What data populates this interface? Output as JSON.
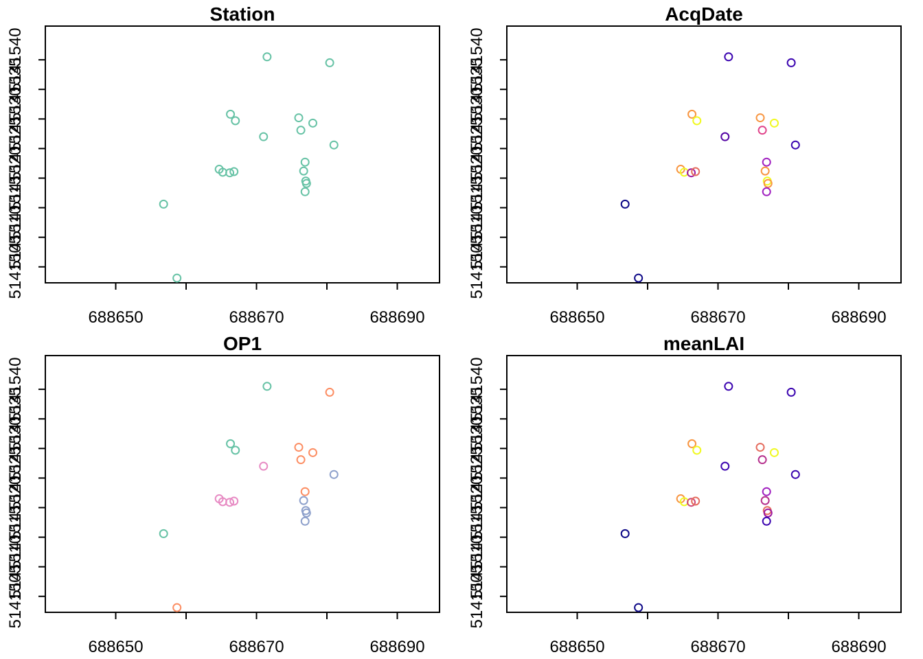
{
  "chart_data": [
    {
      "type": "scatter",
      "title": "Station",
      "xlabel": "",
      "ylabel": "",
      "xlim": [
        688640,
        688696
      ],
      "ylim": [
        5141502.3,
        5141545.7
      ],
      "xticks": [
        688650,
        688660,
        688670,
        688680,
        688690
      ],
      "xtick_labels": [
        "688650",
        "",
        "688670",
        "",
        "688690"
      ],
      "yticks": [
        5141505,
        5141510,
        5141515,
        5141520,
        5141525,
        5141530,
        5141535,
        5141540
      ],
      "ytick_labels": [
        "5141505",
        "5141510",
        "5141515",
        "5141520",
        "5141525",
        "5141530",
        "5141535",
        "5141540"
      ],
      "points": [
        {
          "x": 688656.8,
          "y": 5141515.6,
          "color": "#66c2a5"
        },
        {
          "x": 688658.7,
          "y": 5141503.1,
          "color": "#66c2a5"
        },
        {
          "x": 688664.7,
          "y": 5141521.5,
          "color": "#66c2a5"
        },
        {
          "x": 688665.2,
          "y": 5141521.0,
          "color": "#66c2a5"
        },
        {
          "x": 688666.2,
          "y": 5141520.9,
          "color": "#66c2a5"
        },
        {
          "x": 688666.8,
          "y": 5141521.1,
          "color": "#66c2a5"
        },
        {
          "x": 688666.3,
          "y": 5141530.8,
          "color": "#66c2a5"
        },
        {
          "x": 688667.0,
          "y": 5141529.7,
          "color": "#66c2a5"
        },
        {
          "x": 688671.0,
          "y": 5141527.0,
          "color": "#66c2a5"
        },
        {
          "x": 688671.5,
          "y": 5141540.5,
          "color": "#66c2a5"
        },
        {
          "x": 688676.0,
          "y": 5141530.2,
          "color": "#66c2a5"
        },
        {
          "x": 688676.3,
          "y": 5141528.1,
          "color": "#66c2a5"
        },
        {
          "x": 688678.0,
          "y": 5141529.3,
          "color": "#66c2a5"
        },
        {
          "x": 688676.7,
          "y": 5141521.2,
          "color": "#66c2a5"
        },
        {
          "x": 688676.9,
          "y": 5141522.7,
          "color": "#66c2a5"
        },
        {
          "x": 688677.0,
          "y": 5141519.5,
          "color": "#66c2a5"
        },
        {
          "x": 688677.1,
          "y": 5141519.1,
          "color": "#66c2a5"
        },
        {
          "x": 688676.9,
          "y": 5141517.7,
          "color": "#66c2a5"
        },
        {
          "x": 688680.4,
          "y": 5141539.5,
          "color": "#66c2a5"
        },
        {
          "x": 688681.0,
          "y": 5141525.6,
          "color": "#66c2a5"
        }
      ]
    },
    {
      "type": "scatter",
      "title": "AcqDate",
      "xlabel": "",
      "ylabel": "",
      "xlim": [
        688640,
        688696
      ],
      "ylim": [
        5141502.3,
        5141545.7
      ],
      "xticks": [
        688650,
        688660,
        688670,
        688680,
        688690
      ],
      "xtick_labels": [
        "688650",
        "",
        "688670",
        "",
        "688690"
      ],
      "yticks": [
        5141505,
        5141510,
        5141515,
        5141520,
        5141525,
        5141530,
        5141535,
        5141540
      ],
      "ytick_labels": [
        "5141505",
        "5141510",
        "5141515",
        "5141520",
        "5141525",
        "5141530",
        "5141535",
        "5141540"
      ],
      "points": [
        {
          "x": 688656.8,
          "y": 5141515.6,
          "color": "#0d0887"
        },
        {
          "x": 688658.7,
          "y": 5141503.1,
          "color": "#0d0887"
        },
        {
          "x": 688664.7,
          "y": 5141521.5,
          "color": "#f89540"
        },
        {
          "x": 688665.2,
          "y": 5141521.0,
          "color": "#f0f921"
        },
        {
          "x": 688666.2,
          "y": 5141520.9,
          "color": "#9c179e"
        },
        {
          "x": 688666.8,
          "y": 5141521.1,
          "color": "#e56b5d"
        },
        {
          "x": 688666.3,
          "y": 5141530.8,
          "color": "#f89540"
        },
        {
          "x": 688667.0,
          "y": 5141529.7,
          "color": "#f0f921"
        },
        {
          "x": 688671.0,
          "y": 5141527.0,
          "color": "#5302a3"
        },
        {
          "x": 688671.5,
          "y": 5141540.5,
          "color": "#3b04b0"
        },
        {
          "x": 688676.0,
          "y": 5141530.2,
          "color": "#f89540"
        },
        {
          "x": 688676.3,
          "y": 5141528.1,
          "color": "#e0438a"
        },
        {
          "x": 688678.0,
          "y": 5141529.3,
          "color": "#f0f921"
        },
        {
          "x": 688676.7,
          "y": 5141521.2,
          "color": "#f89540"
        },
        {
          "x": 688676.9,
          "y": 5141522.7,
          "color": "#a020c0"
        },
        {
          "x": 688677.0,
          "y": 5141519.5,
          "color": "#f0f921"
        },
        {
          "x": 688677.1,
          "y": 5141519.1,
          "color": "#f89540"
        },
        {
          "x": 688676.9,
          "y": 5141517.7,
          "color": "#a020c0"
        },
        {
          "x": 688680.4,
          "y": 5141539.5,
          "color": "#3b04b0"
        },
        {
          "x": 688681.0,
          "y": 5141525.6,
          "color": "#3b04b0"
        }
      ]
    },
    {
      "type": "scatter",
      "title": "OP1",
      "xlabel": "",
      "ylabel": "",
      "xlim": [
        688640,
        688696
      ],
      "ylim": [
        5141502.3,
        5141545.7
      ],
      "xticks": [
        688650,
        688660,
        688670,
        688680,
        688690
      ],
      "xtick_labels": [
        "688650",
        "",
        "688670",
        "",
        "688690"
      ],
      "yticks": [
        5141505,
        5141510,
        5141515,
        5141520,
        5141525,
        5141530,
        5141535,
        5141540
      ],
      "ytick_labels": [
        "5141505",
        "5141510",
        "5141515",
        "5141520",
        "5141525",
        "5141530",
        "5141535",
        "5141540"
      ],
      "points": [
        {
          "x": 688656.8,
          "y": 5141515.6,
          "color": "#66c2a5"
        },
        {
          "x": 688658.7,
          "y": 5141503.1,
          "color": "#fc8d62"
        },
        {
          "x": 688664.7,
          "y": 5141521.5,
          "color": "#e78ac3"
        },
        {
          "x": 688665.2,
          "y": 5141521.0,
          "color": "#e78ac3"
        },
        {
          "x": 688666.2,
          "y": 5141520.9,
          "color": "#e78ac3"
        },
        {
          "x": 688666.8,
          "y": 5141521.1,
          "color": "#e78ac3"
        },
        {
          "x": 688666.3,
          "y": 5141530.8,
          "color": "#66c2a5"
        },
        {
          "x": 688667.0,
          "y": 5141529.7,
          "color": "#66c2a5"
        },
        {
          "x": 688671.0,
          "y": 5141527.0,
          "color": "#e78ac3"
        },
        {
          "x": 688671.5,
          "y": 5141540.5,
          "color": "#66c2a5"
        },
        {
          "x": 688676.0,
          "y": 5141530.2,
          "color": "#fc8d62"
        },
        {
          "x": 688676.3,
          "y": 5141528.1,
          "color": "#fc8d62"
        },
        {
          "x": 688678.0,
          "y": 5141529.3,
          "color": "#fc8d62"
        },
        {
          "x": 688676.7,
          "y": 5141521.2,
          "color": "#8da0cb"
        },
        {
          "x": 688676.9,
          "y": 5141522.7,
          "color": "#fc8d62"
        },
        {
          "x": 688677.0,
          "y": 5141519.5,
          "color": "#8da0cb"
        },
        {
          "x": 688677.1,
          "y": 5141519.1,
          "color": "#8da0cb"
        },
        {
          "x": 688676.9,
          "y": 5141517.7,
          "color": "#8da0cb"
        },
        {
          "x": 688680.4,
          "y": 5141539.5,
          "color": "#fc8d62"
        },
        {
          "x": 688681.0,
          "y": 5141525.6,
          "color": "#8da0cb"
        }
      ]
    },
    {
      "type": "scatter",
      "title": "meanLAI",
      "xlabel": "",
      "ylabel": "",
      "xlim": [
        688640,
        688696
      ],
      "ylim": [
        5141502.3,
        5141545.7
      ],
      "xticks": [
        688650,
        688660,
        688670,
        688680,
        688690
      ],
      "xtick_labels": [
        "688650",
        "",
        "688670",
        "",
        "688690"
      ],
      "yticks": [
        5141505,
        5141510,
        5141515,
        5141520,
        5141525,
        5141530,
        5141535,
        5141540
      ],
      "ytick_labels": [
        "5141505",
        "5141510",
        "5141515",
        "5141520",
        "5141525",
        "5141530",
        "5141535",
        "5141540"
      ],
      "points": [
        {
          "x": 688656.8,
          "y": 5141515.6,
          "color": "#0d0887"
        },
        {
          "x": 688658.7,
          "y": 5141503.1,
          "color": "#0d0887"
        },
        {
          "x": 688664.7,
          "y": 5141521.5,
          "color": "#f89540"
        },
        {
          "x": 688665.2,
          "y": 5141521.0,
          "color": "#f0f921"
        },
        {
          "x": 688666.2,
          "y": 5141520.9,
          "color": "#cc4778"
        },
        {
          "x": 688666.8,
          "y": 5141521.1,
          "color": "#e56b5d"
        },
        {
          "x": 688666.3,
          "y": 5141530.8,
          "color": "#f89540"
        },
        {
          "x": 688667.0,
          "y": 5141529.7,
          "color": "#f0f921"
        },
        {
          "x": 688671.0,
          "y": 5141527.0,
          "color": "#3b04b0"
        },
        {
          "x": 688671.5,
          "y": 5141540.5,
          "color": "#3b04b0"
        },
        {
          "x": 688676.0,
          "y": 5141530.2,
          "color": "#e56b5d"
        },
        {
          "x": 688676.3,
          "y": 5141528.1,
          "color": "#b52f8c"
        },
        {
          "x": 688678.0,
          "y": 5141529.3,
          "color": "#f0f921"
        },
        {
          "x": 688676.7,
          "y": 5141521.2,
          "color": "#b52f8c"
        },
        {
          "x": 688676.9,
          "y": 5141522.7,
          "color": "#a020c0"
        },
        {
          "x": 688677.0,
          "y": 5141519.5,
          "color": "#e56b5d"
        },
        {
          "x": 688677.1,
          "y": 5141519.1,
          "color": "#9c179e"
        },
        {
          "x": 688676.9,
          "y": 5141517.7,
          "color": "#3b04b0"
        },
        {
          "x": 688680.4,
          "y": 5141539.5,
          "color": "#3b04b0"
        },
        {
          "x": 688681.0,
          "y": 5141525.6,
          "color": "#3b04b0"
        }
      ]
    }
  ]
}
